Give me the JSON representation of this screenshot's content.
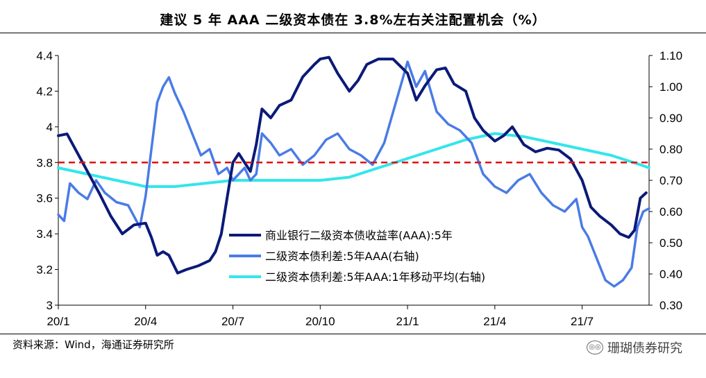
{
  "title": "建议 5 年 AAA 二级资本债在 3.8%左右关注配置机会（%）",
  "source": "资料来源：Wind，海通证券研究所",
  "watermark": "珊瑚债券研究",
  "watermark_icon": "wechat-icon",
  "colors": {
    "yield": "#0b1a78",
    "spread": "#4a7be6",
    "spread_ma": "#33e6ea",
    "reference": "#e01010"
  },
  "chart_data": {
    "type": "line",
    "x_tick_labels": [
      "20/1",
      "20/4",
      "20/7",
      "20/10",
      "21/1",
      "21/4",
      "21/7"
    ],
    "x_ticks_month_index": [
      0,
      3,
      6,
      9,
      12,
      15,
      18
    ],
    "x_range_month_index": [
      0,
      20.3
    ],
    "left_axis": {
      "ylim": [
        3.0,
        4.4
      ],
      "ticks": [
        "3",
        "3.2",
        "3.4",
        "3.6",
        "3.8",
        "4",
        "4.2",
        "4.4"
      ]
    },
    "right_axis": {
      "ylim": [
        0.3,
        1.1
      ],
      "ticks": [
        "0.30",
        "0.40",
        "0.50",
        "0.60",
        "0.70",
        "0.80",
        "0.90",
        "1.00",
        "1.10"
      ]
    },
    "reference_line": {
      "axis": "left",
      "value": 3.8,
      "style": "dashed"
    },
    "series": [
      {
        "name": "商业银行二级资本债收益率(AAA):5年",
        "axis": "left",
        "color_key": "yield",
        "x": [
          0,
          0.3,
          0.6,
          1.0,
          1.4,
          1.8,
          2.2,
          2.6,
          3.0,
          3.2,
          3.4,
          3.6,
          3.8,
          4.1,
          4.4,
          4.8,
          5.2,
          5.4,
          5.6,
          5.8,
          6.0,
          6.2,
          6.4,
          6.6,
          6.8,
          7.0,
          7.3,
          7.6,
          8.0,
          8.4,
          8.8,
          9.0,
          9.3,
          9.6,
          10.0,
          10.3,
          10.6,
          11.0,
          11.5,
          12.0,
          12.3,
          12.6,
          13.0,
          13.3,
          13.6,
          14.0,
          14.3,
          14.6,
          15.0,
          15.3,
          15.6,
          16.0,
          16.4,
          16.8,
          17.2,
          17.6,
          18.0,
          18.3,
          18.6,
          19.0,
          19.3,
          19.6,
          19.8,
          20.0,
          20.2
        ],
        "values": [
          3.95,
          3.96,
          3.87,
          3.75,
          3.63,
          3.5,
          3.4,
          3.45,
          3.46,
          3.38,
          3.28,
          3.3,
          3.28,
          3.18,
          3.2,
          3.22,
          3.25,
          3.3,
          3.4,
          3.6,
          3.8,
          3.85,
          3.8,
          3.75,
          3.9,
          4.1,
          4.05,
          4.12,
          4.15,
          4.28,
          4.35,
          4.38,
          4.39,
          4.3,
          4.2,
          4.26,
          4.35,
          4.38,
          4.38,
          4.3,
          4.15,
          4.23,
          4.32,
          4.33,
          4.24,
          4.2,
          4.05,
          3.98,
          3.92,
          3.95,
          4.0,
          3.9,
          3.86,
          3.88,
          3.87,
          3.82,
          3.7,
          3.55,
          3.5,
          3.45,
          3.4,
          3.38,
          3.42,
          3.6,
          3.63
        ]
      },
      {
        "name": "二级资本债利差:5年AAA(右轴)",
        "axis": "right",
        "color_key": "spread",
        "x": [
          0,
          0.2,
          0.4,
          0.7,
          1.0,
          1.3,
          1.6,
          2.0,
          2.4,
          2.8,
          3.0,
          3.2,
          3.4,
          3.6,
          3.8,
          4.0,
          4.3,
          4.6,
          4.9,
          5.2,
          5.5,
          5.8,
          6.0,
          6.2,
          6.4,
          6.6,
          6.8,
          7.0,
          7.3,
          7.6,
          8.0,
          8.4,
          8.8,
          9.2,
          9.6,
          10.0,
          10.4,
          10.8,
          11.2,
          11.6,
          12.0,
          12.3,
          12.6,
          13.0,
          13.4,
          13.8,
          14.2,
          14.6,
          15.0,
          15.4,
          15.8,
          16.2,
          16.6,
          17.0,
          17.4,
          17.8,
          18.0,
          18.2,
          18.5,
          18.8,
          19.1,
          19.4,
          19.7,
          19.9,
          20.1,
          20.3
        ],
        "values": [
          0.59,
          0.57,
          0.69,
          0.66,
          0.64,
          0.7,
          0.66,
          0.63,
          0.62,
          0.55,
          0.65,
          0.8,
          0.95,
          1.0,
          1.03,
          0.98,
          0.92,
          0.85,
          0.78,
          0.8,
          0.72,
          0.74,
          0.7,
          0.72,
          0.74,
          0.7,
          0.72,
          0.85,
          0.82,
          0.78,
          0.8,
          0.75,
          0.78,
          0.83,
          0.85,
          0.8,
          0.78,
          0.75,
          0.82,
          0.95,
          1.08,
          1.0,
          1.05,
          0.92,
          0.88,
          0.86,
          0.82,
          0.72,
          0.68,
          0.66,
          0.7,
          0.72,
          0.66,
          0.62,
          0.6,
          0.64,
          0.55,
          0.52,
          0.45,
          0.38,
          0.36,
          0.38,
          0.42,
          0.55,
          0.6,
          0.61
        ]
      },
      {
        "name": "二级资本债利差:5年AAA:1年移动平均(右轴)",
        "axis": "right",
        "color_key": "spread_ma",
        "x": [
          0,
          1,
          2,
          3,
          4,
          5,
          6,
          7,
          8,
          9,
          10,
          11,
          12,
          13,
          14,
          15,
          16,
          17,
          18,
          19,
          20,
          20.3
        ],
        "values": [
          0.74,
          0.72,
          0.7,
          0.68,
          0.68,
          0.69,
          0.7,
          0.7,
          0.7,
          0.7,
          0.71,
          0.74,
          0.77,
          0.8,
          0.83,
          0.85,
          0.84,
          0.82,
          0.8,
          0.78,
          0.75,
          0.74
        ]
      }
    ]
  }
}
